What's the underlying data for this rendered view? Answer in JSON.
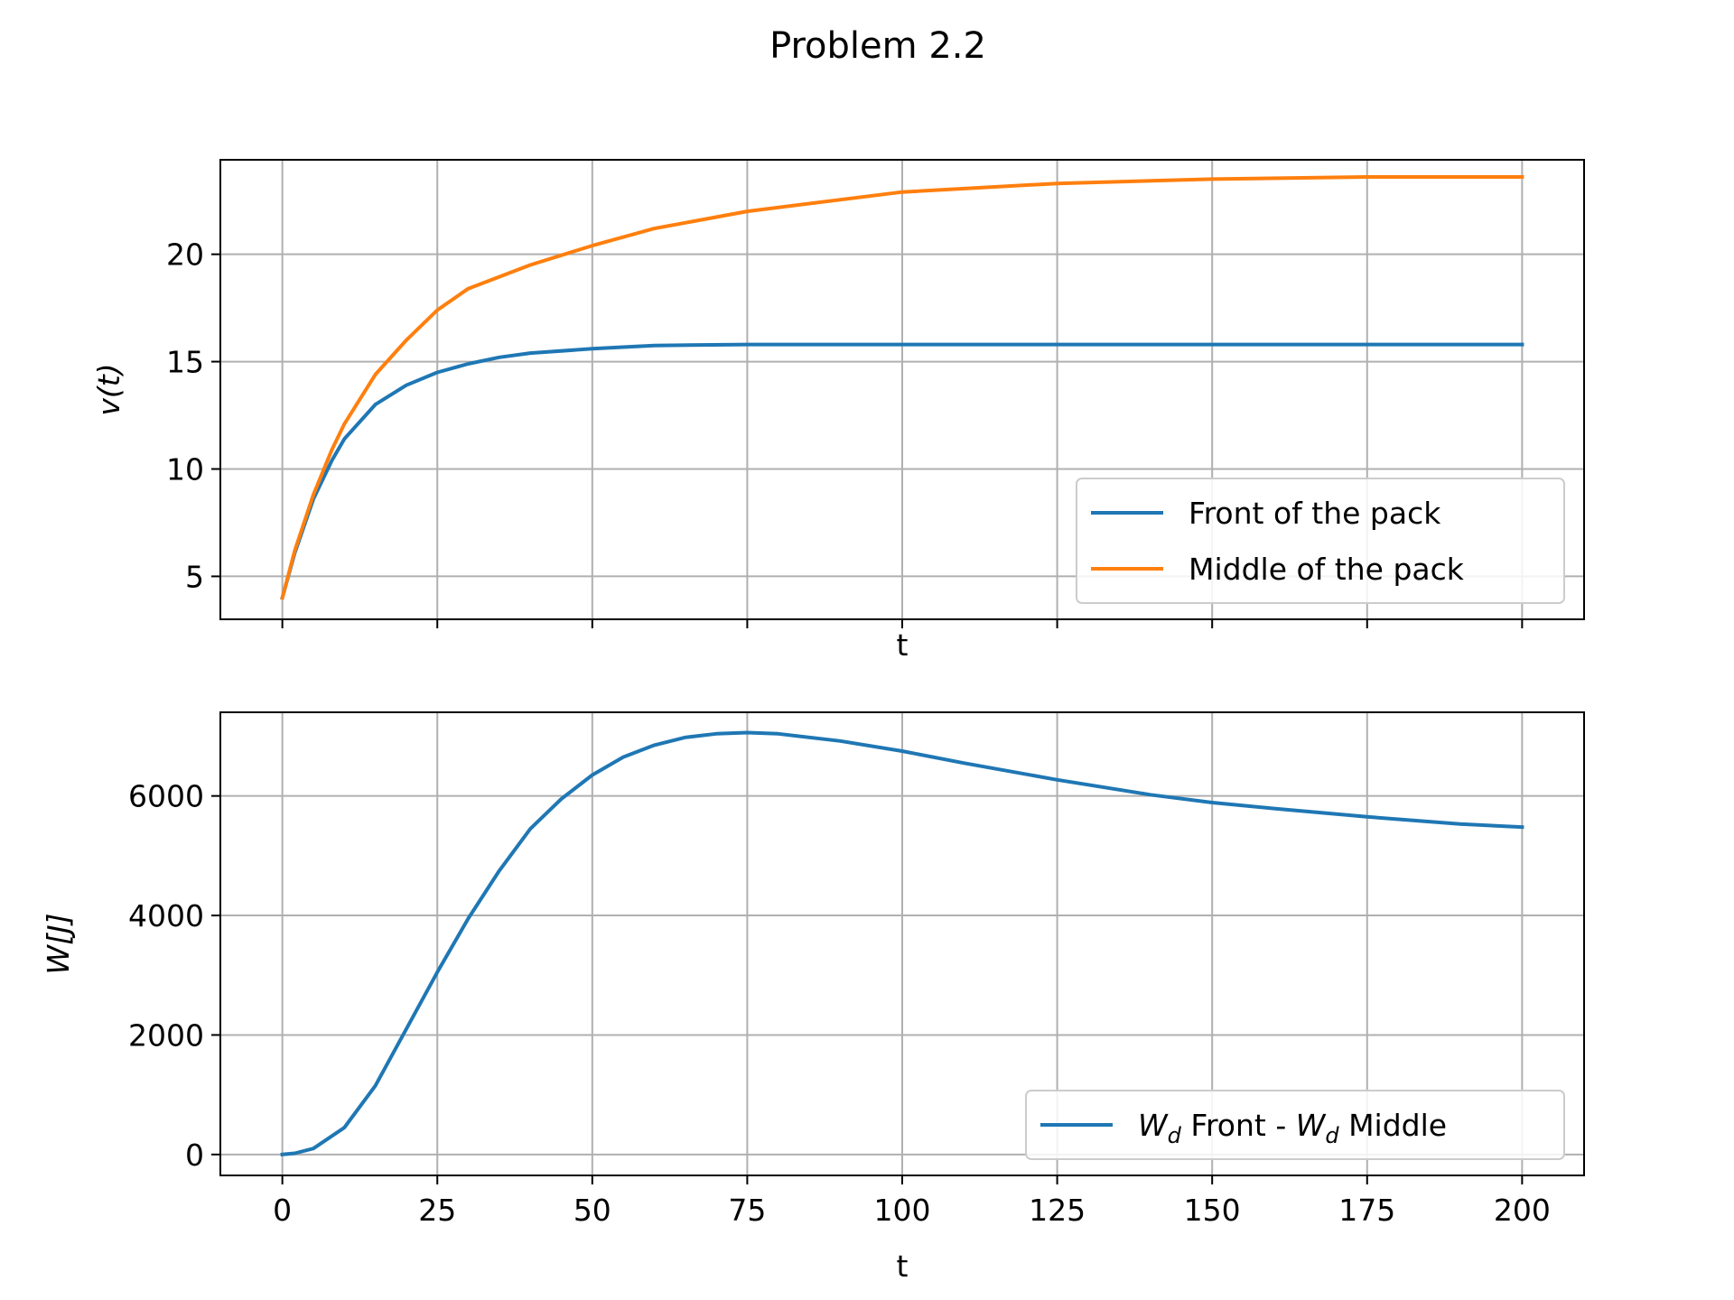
{
  "figure": {
    "title": "Problem 2.2"
  },
  "chart_data": [
    {
      "type": "line",
      "xlabel": "t",
      "ylabel": "v(t)",
      "xlim": [
        -10,
        210
      ],
      "ylim": [
        3.0,
        24.4
      ],
      "xticks": [
        0,
        25,
        50,
        75,
        100,
        125,
        150,
        175,
        200
      ],
      "yticks": [
        5,
        10,
        15,
        20
      ],
      "show_xtick_labels": false,
      "grid": true,
      "legend_position": "lower right",
      "series": [
        {
          "name": "Front of the pack",
          "color": "#1f77b4",
          "x": [
            0,
            2,
            5,
            8,
            10,
            15,
            20,
            25,
            30,
            35,
            40,
            50,
            60,
            75,
            100,
            125,
            150,
            175,
            200
          ],
          "y": [
            4.0,
            6.1,
            8.6,
            10.4,
            11.4,
            13.0,
            13.9,
            14.5,
            14.9,
            15.2,
            15.4,
            15.6,
            15.75,
            15.8,
            15.8,
            15.8,
            15.8,
            15.8,
            15.8
          ]
        },
        {
          "name": "Middle of the pack",
          "color": "#ff7f0e",
          "x": [
            0,
            2,
            5,
            8,
            10,
            15,
            20,
            25,
            30,
            40,
            50,
            60,
            75,
            100,
            125,
            150,
            175,
            200
          ],
          "y": [
            4.0,
            6.2,
            8.8,
            10.9,
            12.1,
            14.4,
            16.0,
            17.4,
            18.4,
            19.5,
            20.4,
            21.2,
            22.0,
            22.9,
            23.3,
            23.5,
            23.6,
            23.6
          ]
        }
      ]
    },
    {
      "type": "line",
      "xlabel": "t",
      "ylabel": "W[J]",
      "xlim": [
        -10,
        210
      ],
      "ylim": [
        -350,
        7400
      ],
      "xticks": [
        0,
        25,
        50,
        75,
        100,
        125,
        150,
        175,
        200
      ],
      "yticks": [
        0,
        2000,
        4000,
        6000
      ],
      "grid": true,
      "legend_position": "lower right",
      "series": [
        {
          "name": "W_d Front - W_d Middle",
          "legend_parts": [
            "W",
            "d",
            " Front - ",
            "W",
            "d",
            " Middle"
          ],
          "color": "#1f77b4",
          "x": [
            0,
            2,
            5,
            10,
            15,
            20,
            25,
            30,
            35,
            40,
            45,
            50,
            55,
            60,
            65,
            70,
            75,
            80,
            90,
            100,
            110,
            125,
            140,
            150,
            160,
            175,
            190,
            200
          ],
          "y": [
            0,
            20,
            100,
            450,
            1150,
            2100,
            3050,
            3950,
            4750,
            5450,
            5950,
            6350,
            6650,
            6850,
            6980,
            7040,
            7060,
            7040,
            6920,
            6750,
            6550,
            6270,
            6020,
            5890,
            5790,
            5650,
            5530,
            5480
          ]
        }
      ]
    }
  ]
}
